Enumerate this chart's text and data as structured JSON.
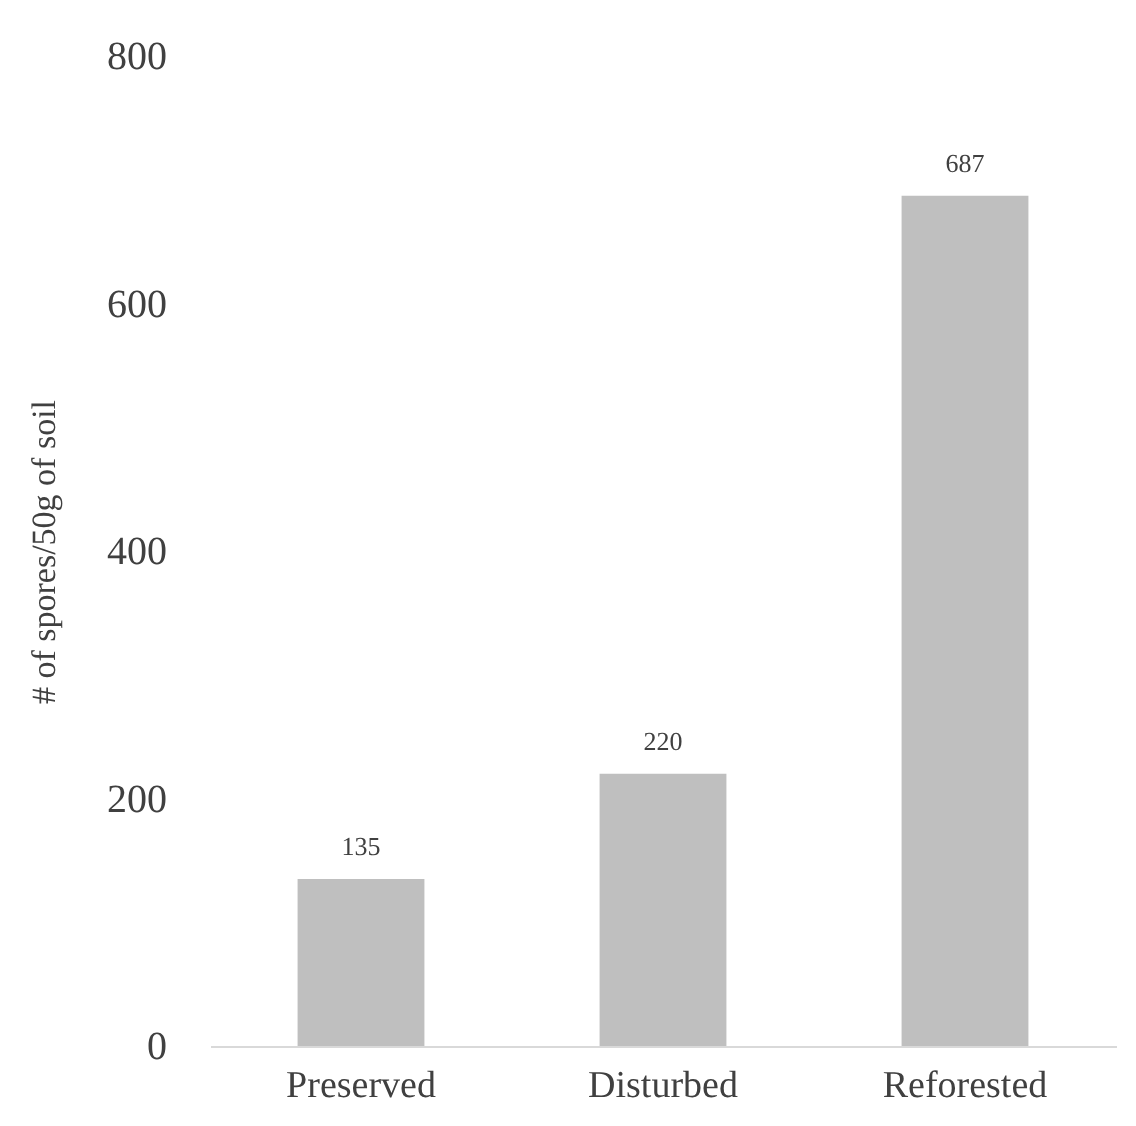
{
  "chart_data": {
    "type": "bar",
    "ylabel": "# of spores/50g of soil",
    "categories": [
      "Preserved",
      "Disturbed",
      "Reforested"
    ],
    "values": [
      135,
      220,
      687
    ],
    "color": "#bfbfbf",
    "ylim": [
      0,
      800
    ],
    "yticks": [
      0,
      200,
      400,
      600,
      800
    ],
    "grid": false,
    "data_labels": true
  }
}
